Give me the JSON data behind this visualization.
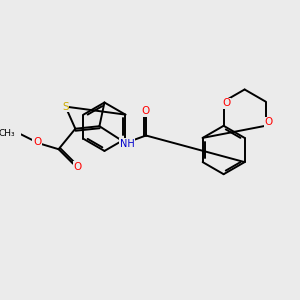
{
  "bg_color": "#ebebeb",
  "atom_colors": {
    "S": "#ccaa00",
    "O": "#ff0000",
    "N": "#0000cc",
    "C": "#000000"
  },
  "figsize": [
    3.0,
    3.0
  ],
  "dpi": 100,
  "lw": 1.4
}
